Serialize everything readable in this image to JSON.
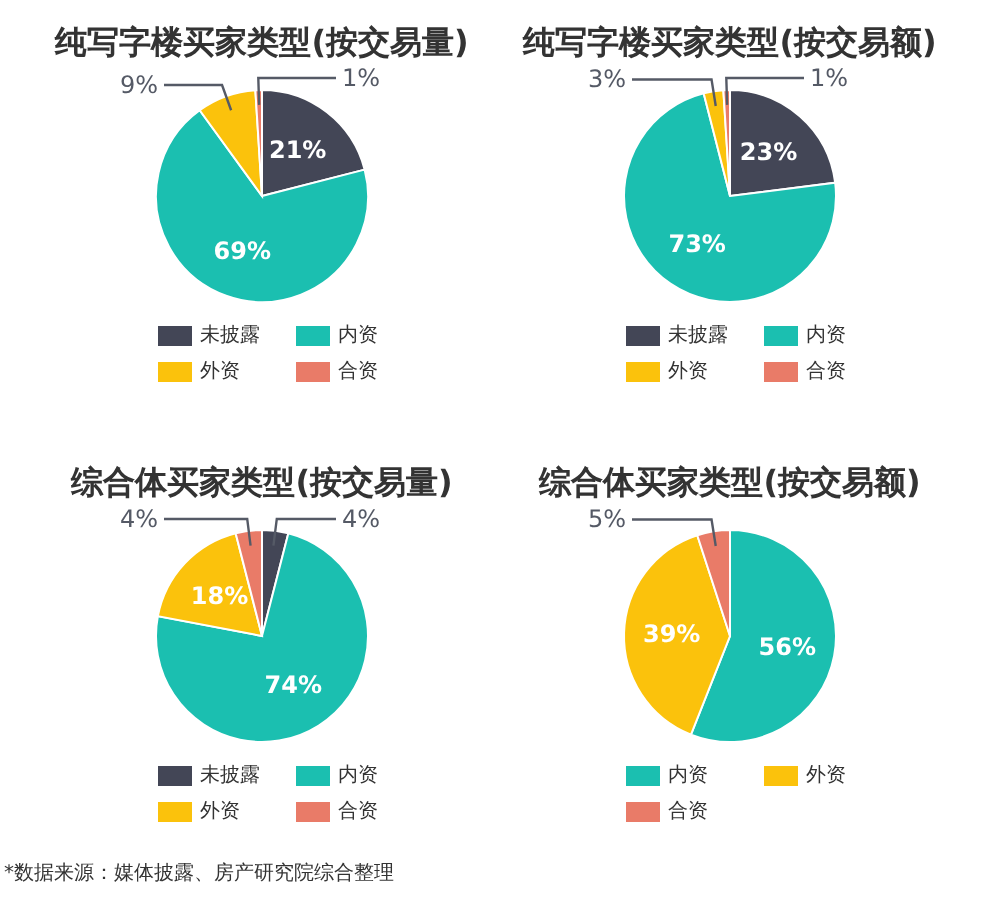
{
  "chart_data": [
    {
      "type": "pie",
      "title": "纯写字楼买家类型(按交易量)",
      "categories": [
        "未披露",
        "内资",
        "外资",
        "合资"
      ],
      "values": [
        21,
        69,
        9,
        1
      ],
      "colors": [
        "#434656",
        "#1bbfb0",
        "#fbc20c",
        "#e97b68"
      ],
      "value_labels": [
        "21%",
        "69%",
        "9%",
        "1%"
      ],
      "legend": "bottom"
    },
    {
      "type": "pie",
      "title": "纯写字楼买家类型(按交易额)",
      "categories": [
        "未披露",
        "内资",
        "外资",
        "合资"
      ],
      "values": [
        23,
        73,
        3,
        1
      ],
      "colors": [
        "#434656",
        "#1bbfb0",
        "#fbc20c",
        "#e97b68"
      ],
      "value_labels": [
        "23%",
        "73%",
        "3%",
        "1%"
      ],
      "legend": "bottom"
    },
    {
      "type": "pie",
      "title": "综合体买家类型(按交易量)",
      "categories": [
        "未披露",
        "内资",
        "外资",
        "合资"
      ],
      "values": [
        4,
        74,
        18,
        4
      ],
      "colors": [
        "#434656",
        "#1bbfb0",
        "#fbc20c",
        "#e97b68"
      ],
      "value_labels": [
        "4%",
        "74%",
        "18%",
        "4%"
      ],
      "legend": "bottom",
      "annotations": [
        "*数据来源：媒体披露、房产研究院综合整理"
      ]
    },
    {
      "type": "pie",
      "title": "综合体买家类型(按交易额)",
      "categories": [
        "内资",
        "外资",
        "合资"
      ],
      "values": [
        56,
        39,
        5
      ],
      "colors": [
        "#1bbfb0",
        "#fbc20c",
        "#e97b68"
      ],
      "value_labels": [
        "56%",
        "39%",
        "5%"
      ],
      "legend": "bottom"
    }
  ]
}
